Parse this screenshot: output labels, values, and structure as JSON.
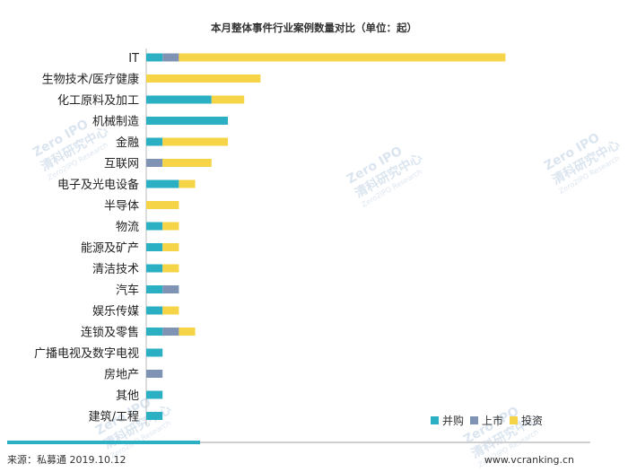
{
  "chart_data": {
    "type": "bar",
    "orientation": "horizontal",
    "stacked": true,
    "title": "本月整体事件行业案例数量对比（单位：起）",
    "categories": [
      "IT",
      "生物技术/医疗健康",
      "化工原料及加工",
      "机械制造",
      "金融",
      "互联网",
      "电子及光电设备",
      "半导体",
      "物流",
      "能源及矿产",
      "清洁技术",
      "汽车",
      "娱乐传媒",
      "连锁及零售",
      "广播电视及数字电视",
      "房地产",
      "其他",
      "建筑/工程"
    ],
    "series": [
      {
        "name": "并购",
        "color": "#2bafc2",
        "values": [
          1,
          0,
          4,
          5,
          1,
          0,
          2,
          0,
          1,
          1,
          1,
          1,
          1,
          1,
          1,
          0,
          1,
          1
        ]
      },
      {
        "name": "上市",
        "color": "#7f93b5",
        "values": [
          1,
          0,
          0,
          0,
          0,
          1,
          0,
          0,
          0,
          0,
          0,
          1,
          0,
          1,
          0,
          1,
          0,
          0
        ]
      },
      {
        "name": "投资",
        "color": "#f5d547",
        "values": [
          20,
          7,
          2,
          0,
          4,
          3,
          1,
          2,
          1,
          1,
          1,
          0,
          1,
          1,
          0,
          0,
          0,
          0
        ]
      }
    ],
    "legend_position": "bottom-right",
    "grid": false
  },
  "footer": {
    "source": "来源：私募通 2019.10.12",
    "website": "www.vcranking.cn"
  },
  "watermark": {
    "main": "清科研究中心",
    "sub": "Zero2IPO Research",
    "badge": "Zero IPO"
  }
}
